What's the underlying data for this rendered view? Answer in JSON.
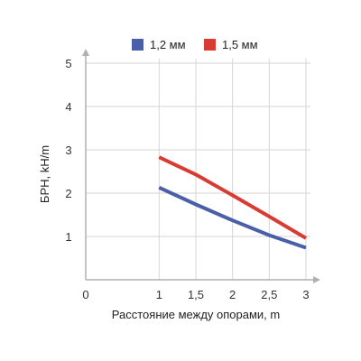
{
  "chart_data": {
    "type": "line",
    "title": "",
    "xlabel": "Расстояние между опорами, m",
    "ylabel": "БРН, kH/m",
    "x_ticks": [
      "0",
      "1",
      "1,5",
      "2",
      "2,5",
      "3"
    ],
    "y_ticks": [
      "1",
      "2",
      "3",
      "4",
      "5"
    ],
    "xlim": [
      0,
      3
    ],
    "ylim": [
      0,
      5
    ],
    "grid": true,
    "legend_position": "top",
    "series": [
      {
        "name": "1,2 мм",
        "color": "#4a5fa8",
        "x": [
          1,
          1.5,
          2,
          2.5,
          3
        ],
        "y": [
          2.13,
          1.74,
          1.37,
          1.03,
          0.74
        ]
      },
      {
        "name": "1,5 мм",
        "color": "#d93a32",
        "x": [
          1,
          1.5,
          2,
          2.5,
          3
        ],
        "y": [
          2.83,
          2.43,
          1.95,
          1.46,
          0.96
        ]
      }
    ]
  }
}
